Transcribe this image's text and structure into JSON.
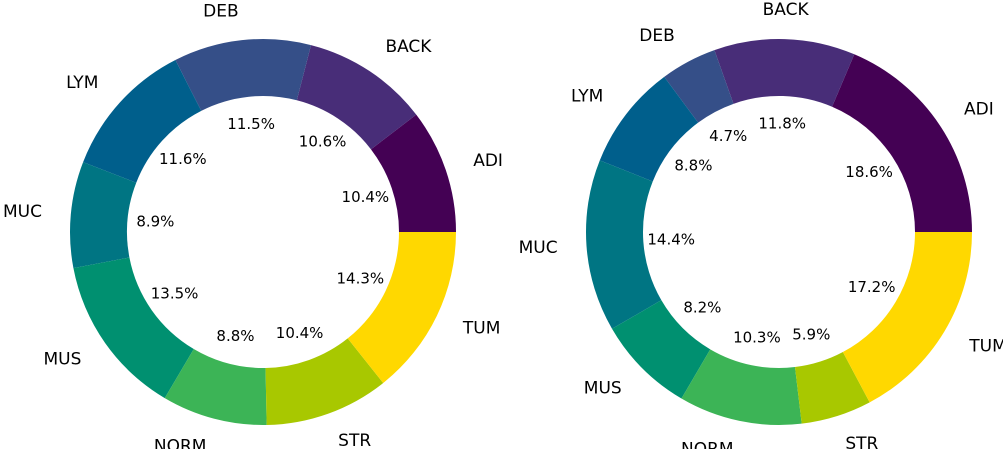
{
  "chart_data": [
    {
      "type": "pie",
      "categories": [
        "ADI",
        "BACK",
        "DEB",
        "LYM",
        "MUC",
        "MUS",
        "NORM",
        "STR",
        "TUM"
      ],
      "values": [
        10.4,
        10.6,
        11.5,
        11.6,
        8.9,
        13.5,
        8.8,
        10.4,
        14.3
      ],
      "value_labels": [
        "10.4%",
        "10.6%",
        "11.5%",
        "11.6%",
        "8.9%",
        "13.5%",
        "8.8%",
        "10.4%",
        "14.3%"
      ],
      "colors": [
        "#440154",
        "#482d78",
        "#354f88",
        "#005f8c",
        "#007583",
        "#009070",
        "#3cb456",
        "#a8c800",
        "#ffd800"
      ]
    },
    {
      "type": "pie",
      "categories": [
        "ADI",
        "BACK",
        "DEB",
        "LYM",
        "MUC",
        "MUS",
        "NORM",
        "STR",
        "TUM"
      ],
      "values": [
        18.6,
        11.8,
        4.7,
        8.8,
        14.4,
        8.2,
        10.3,
        5.9,
        17.2
      ],
      "value_labels": [
        "18.6%",
        "11.8%",
        "4.7%",
        "8.8%",
        "14.4%",
        "8.2%",
        "10.3%",
        "5.9%",
        "17.2%"
      ],
      "colors": [
        "#440154",
        "#482d78",
        "#354f88",
        "#005f8c",
        "#007583",
        "#009070",
        "#3cb456",
        "#a8c800",
        "#ffd800"
      ]
    }
  ]
}
